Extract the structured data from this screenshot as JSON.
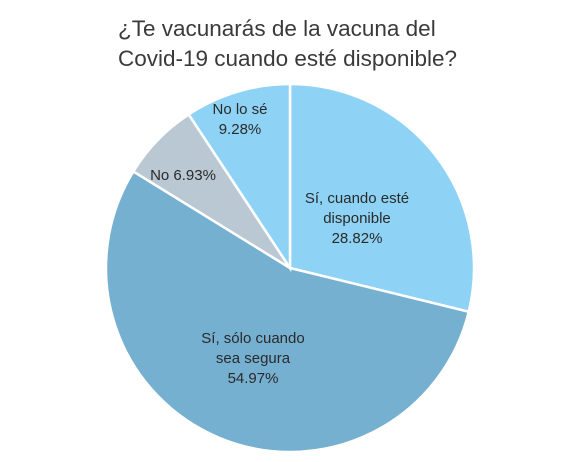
{
  "chart_data": {
    "type": "pie",
    "title_lines": [
      "¿Te vacunarás de la vacuna del",
      "Covid-19 cuando esté disponible?"
    ],
    "slices": [
      {
        "label_lines": [
          "Sí, cuando esté",
          "disponible",
          "28.82%"
        ],
        "value": 28.82,
        "color": "#8ed3f5"
      },
      {
        "label_lines": [
          "Sí, sólo cuando",
          "sea segura",
          "54.97%"
        ],
        "value": 54.97,
        "color": "#76b0d1"
      },
      {
        "label_lines": [
          "No 6.93%"
        ],
        "value": 6.93,
        "color": "#b9c8d2"
      },
      {
        "label_lines": [
          "No lo sé",
          "9.28%"
        ],
        "value": 9.28,
        "color": "#8ed3f5"
      }
    ]
  }
}
